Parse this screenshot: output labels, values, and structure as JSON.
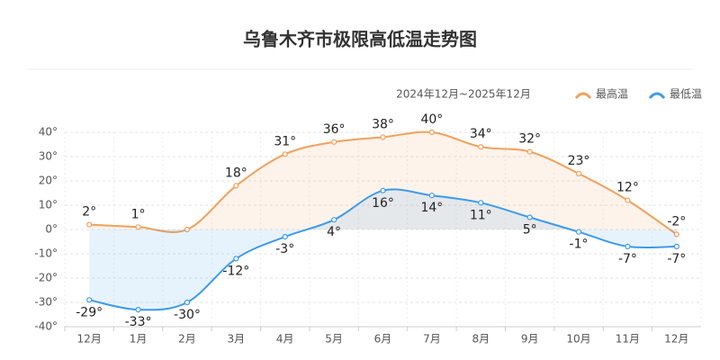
{
  "chart_data": {
    "type": "line",
    "title": "乌鲁木齐市极限高低温走势图",
    "subtitle": "2024年12月~2025年12月",
    "categories": [
      "12月",
      "1月",
      "2月",
      "3月",
      "4月",
      "5月",
      "6月",
      "7月",
      "8月",
      "9月",
      "10月",
      "11月",
      "12月"
    ],
    "series": [
      {
        "name": "最高温",
        "color": "#f2a05a",
        "values": [
          2,
          1,
          0,
          18,
          31,
          36,
          38,
          40,
          34,
          32,
          23,
          12,
          -2
        ],
        "value_labels": [
          "2°",
          "1°",
          null,
          "18°",
          "31°",
          "36°",
          "38°",
          "40°",
          "34°",
          "32°",
          "23°",
          "12°",
          "-2°"
        ]
      },
      {
        "name": "最低温",
        "color": "#3d9be9",
        "values": [
          -29,
          -33,
          -30,
          -12,
          -3,
          4,
          16,
          14,
          11,
          5,
          -1,
          -7,
          -7
        ],
        "value_labels": [
          "-29°",
          "-33°",
          "-30°",
          "-12°",
          "-3°",
          "4°",
          "16°",
          "14°",
          "11°",
          "5°",
          "-1°",
          "-7°",
          "-7°"
        ]
      }
    ],
    "ylim": [
      -40,
      40
    ],
    "yticks": [
      {
        "value": -40,
        "label": "-40°"
      },
      {
        "value": -30,
        "label": "-30°"
      },
      {
        "value": -20,
        "label": "-20°"
      },
      {
        "value": -10,
        "label": "-10°"
      },
      {
        "value": 0,
        "label": "0°"
      },
      {
        "value": 10,
        "label": "10°"
      },
      {
        "value": 20,
        "label": "20°"
      },
      {
        "value": 30,
        "label": "30°"
      },
      {
        "value": 40,
        "label": "40°"
      }
    ],
    "grid": true,
    "legend": "top-right"
  }
}
